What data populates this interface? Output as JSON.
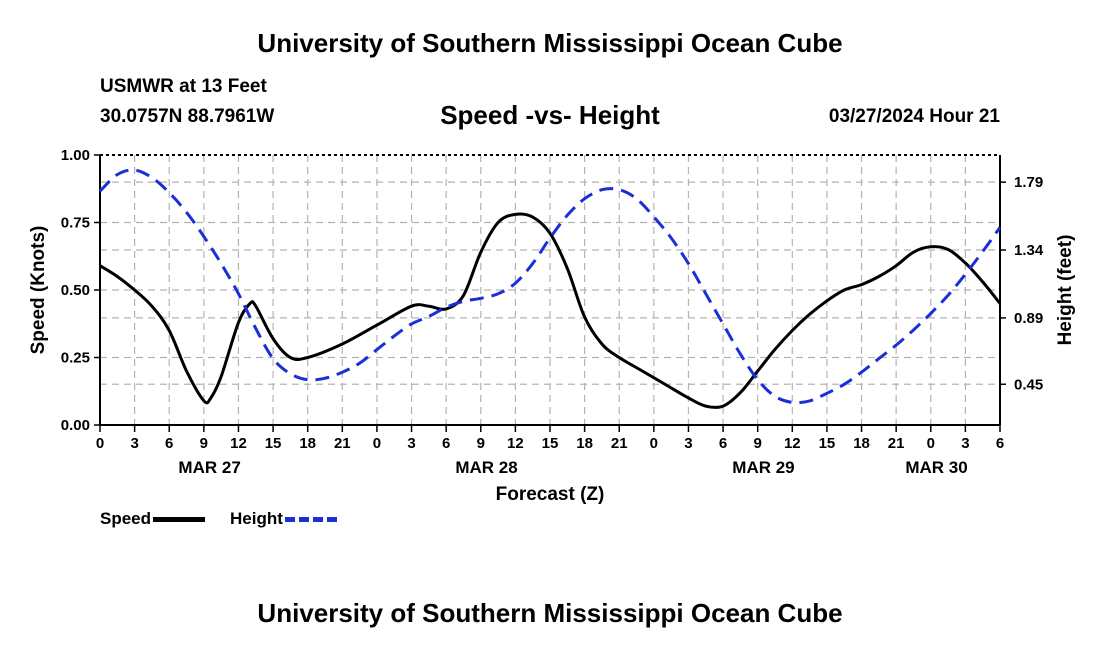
{
  "header": {
    "title": "University of Southern Mississippi Ocean Cube",
    "station": "USMWR at 13 Feet",
    "coords": "30.0757N  88.7961W",
    "subtitle": "Speed -vs- Height",
    "datetime": "03/27/2024 Hour 21"
  },
  "footer": {
    "title": "University of Southern Mississippi Ocean Cube"
  },
  "legend": {
    "speed_label": "Speed",
    "height_label": "Height"
  },
  "colors": {
    "speed": "#000000",
    "height": "#1a2fd6",
    "grid": "#b4b4b4"
  },
  "chart_data": {
    "type": "line",
    "xlabel": "Forecast (Z)",
    "ylabel": "Speed (Knots)",
    "ylabel_right": "Height (feet)",
    "x_range_hours": [
      0,
      78
    ],
    "ylim": [
      0,
      1.0
    ],
    "ylim_right": [
      0.18,
      1.97
    ],
    "x_ticks": [
      "0",
      "3",
      "6",
      "9",
      "12",
      "15",
      "18",
      "21",
      "0",
      "3",
      "6",
      "9",
      "12",
      "15",
      "18",
      "21",
      "0",
      "3",
      "6",
      "9",
      "12",
      "15",
      "18",
      "21",
      "0",
      "3",
      "6"
    ],
    "y_ticks": [
      "0.00",
      "0.25",
      "0.50",
      "0.75",
      "1.00"
    ],
    "y_ticks_values": [
      0,
      0.25,
      0.5,
      0.75,
      1.0
    ],
    "y_ticks_right": [
      "0.45",
      "0.89",
      "1.34",
      "1.79"
    ],
    "y_ticks_right_values": [
      0.45,
      0.89,
      1.34,
      1.79
    ],
    "day_labels": [
      {
        "label": "MAR 27",
        "hour": 9.5
      },
      {
        "label": "MAR 28",
        "hour": 33.5
      },
      {
        "label": "MAR 29",
        "hour": 57.5
      },
      {
        "label": "MAR 30",
        "hour": 72.5
      }
    ],
    "series": [
      {
        "name": "Speed",
        "axis": "left",
        "x": [
          0,
          1.5,
          3,
          4.5,
          6,
          7.5,
          9,
          9.6,
          10.5,
          12,
          13,
          13.5,
          15,
          16.5,
          18,
          21,
          24,
          27,
          28.5,
          30,
          31.5,
          33,
          34.5,
          36,
          37.5,
          39,
          40.5,
          42,
          43.5,
          45,
          47,
          49,
          51,
          52.5,
          54,
          55.5,
          57,
          58.5,
          60,
          61.5,
          63,
          64.5,
          66,
          67.5,
          69,
          70.5,
          72,
          73.5,
          75,
          76.5,
          78
        ],
        "values": [
          0.59,
          0.55,
          0.5,
          0.44,
          0.35,
          0.2,
          0.09,
          0.1,
          0.18,
          0.38,
          0.45,
          0.44,
          0.32,
          0.25,
          0.25,
          0.3,
          0.37,
          0.44,
          0.44,
          0.43,
          0.48,
          0.64,
          0.75,
          0.78,
          0.77,
          0.71,
          0.58,
          0.4,
          0.3,
          0.25,
          0.2,
          0.15,
          0.1,
          0.07,
          0.07,
          0.12,
          0.2,
          0.28,
          0.35,
          0.41,
          0.46,
          0.5,
          0.52,
          0.55,
          0.59,
          0.64,
          0.66,
          0.65,
          0.6,
          0.53,
          0.45
        ]
      },
      {
        "name": "Height",
        "axis": "right",
        "x": [
          0,
          1.5,
          3,
          4.5,
          6,
          7.5,
          9,
          10.5,
          12,
          13.5,
          15,
          16.5,
          18,
          19.5,
          21,
          22.5,
          24,
          25.5,
          27,
          28.5,
          30,
          31.5,
          33,
          34.5,
          36,
          37.5,
          39,
          40.5,
          42,
          43.5,
          45,
          46.5,
          48,
          49.5,
          51,
          52.5,
          54,
          55.5,
          57,
          58.5,
          60,
          61.5,
          63,
          64.5,
          66,
          67.5,
          69,
          70.5,
          72,
          73.5,
          75,
          76.5,
          78
        ],
        "values": [
          1.73,
          1.84,
          1.87,
          1.82,
          1.72,
          1.59,
          1.43,
          1.25,
          1.05,
          0.82,
          0.62,
          0.52,
          0.48,
          0.49,
          0.53,
          0.59,
          0.68,
          0.77,
          0.85,
          0.9,
          0.96,
          1.0,
          1.02,
          1.05,
          1.12,
          1.25,
          1.42,
          1.57,
          1.68,
          1.74,
          1.74,
          1.68,
          1.56,
          1.42,
          1.25,
          1.05,
          0.85,
          0.65,
          0.48,
          0.37,
          0.33,
          0.34,
          0.39,
          0.45,
          0.53,
          0.62,
          0.71,
          0.81,
          0.92,
          1.04,
          1.18,
          1.33,
          1.49
        ]
      }
    ]
  }
}
